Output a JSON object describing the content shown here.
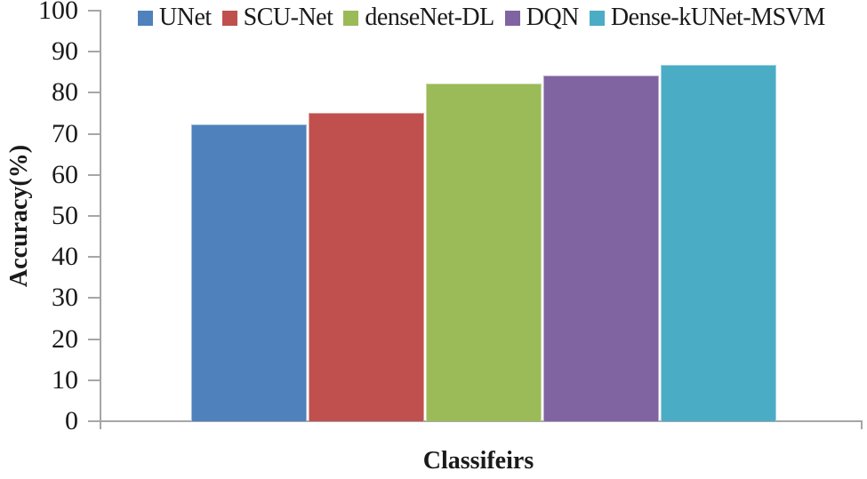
{
  "chart_data": {
    "type": "bar",
    "title": "",
    "xlabel": "Classifeirs",
    "ylabel": "Accuracy(%)",
    "categories": [
      "UNet",
      "SCU-Net",
      "denseNet-DL",
      "DQN",
      "Dense-kUNet-MSVM"
    ],
    "values": [
      72.2,
      75.2,
      82.3,
      84.2,
      86.9
    ],
    "colors": [
      "#4F81BD",
      "#C0504D",
      "#9BBB59",
      "#8064A2",
      "#4BACC6"
    ],
    "ylim": [
      0,
      100
    ],
    "ytick_step": 10,
    "yticks": [
      0,
      10,
      20,
      30,
      40,
      50,
      60,
      70,
      80,
      90,
      100
    ],
    "grid": false,
    "legend_position": "top",
    "axis_color": "#A6A6A6",
    "text_color": "#1A1A1A"
  }
}
